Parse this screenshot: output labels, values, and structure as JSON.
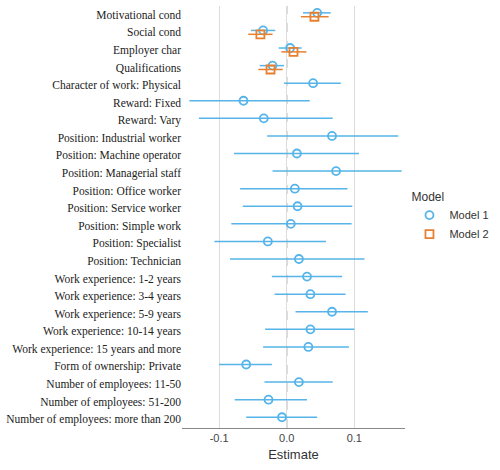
{
  "chart_data": {
    "type": "coefficient",
    "orientation": "horizontal",
    "xlabel": "Estimate",
    "legend_title": "Model",
    "legend": "right",
    "grid": true,
    "xlim": [
      -0.155,
      0.175
    ],
    "xticks": [
      {
        "value": -0.1,
        "label": "-0.1"
      },
      {
        "value": 0,
        "label": "0.0"
      },
      {
        "value": 0.1,
        "label": "0.1"
      }
    ],
    "reference_line": {
      "value": 0,
      "line_style": "dashed"
    },
    "categories": [
      "Motivational cond",
      "Social cond",
      "Employer char",
      "Qualifications",
      "Character of work: Physical",
      "Reward: Fixed",
      "Reward: Vary",
      "Position: Industrial worker",
      "Position: Machine operator",
      "Position: Managerial staff",
      "Position: Office worker",
      "Position: Service worker",
      "Position: Simple work",
      "Position: Specialist",
      "Position: Technician",
      "Work experience: 1-2 years",
      "Work experience: 3-4 years",
      "Work experience: 5-9 years",
      "Work experience: 10-14 years",
      "Work experience: 15 years and more",
      "Form of ownership: Private",
      "Number of employees: 11-50",
      "Number of employees: 51-200",
      "Number of employees: more than 200"
    ],
    "series": [
      {
        "name": "Model 1",
        "color": "#56b4e9",
        "marker": "circle-open",
        "values": [
          0.045,
          -0.035,
          0.005,
          -0.021,
          0.039,
          -0.064,
          -0.034,
          0.067,
          0.015,
          0.073,
          0.012,
          0.016,
          0.006,
          -0.028,
          0.018,
          0.03,
          0.035,
          0.067,
          0.035,
          0.032,
          -0.06,
          0.018,
          -0.027,
          -0.007
        ],
        "ci_low": [
          0.024,
          -0.053,
          -0.012,
          -0.04,
          -0.004,
          -0.144,
          -0.13,
          -0.029,
          -0.078,
          -0.021,
          -0.069,
          -0.065,
          -0.082,
          -0.107,
          -0.084,
          -0.022,
          -0.018,
          0.013,
          -0.032,
          -0.035,
          -0.1,
          -0.033,
          -0.077,
          -0.06
        ],
        "ci_high": [
          0.065,
          -0.017,
          0.022,
          -0.004,
          0.08,
          0.034,
          0.068,
          0.165,
          0.107,
          0.17,
          0.09,
          0.097,
          0.096,
          0.058,
          0.115,
          0.082,
          0.087,
          0.12,
          0.1,
          0.092,
          -0.022,
          0.068,
          0.03,
          0.045
        ]
      },
      {
        "name": "Model 2",
        "color": "#e8802f",
        "marker": "square-open",
        "values": [
          0.041,
          -0.039,
          0.01,
          -0.024,
          null,
          null,
          null,
          null,
          null,
          null,
          null,
          null,
          null,
          null,
          null,
          null,
          null,
          null,
          null,
          null,
          null,
          null,
          null,
          null
        ],
        "ci_low": [
          0.021,
          -0.057,
          -0.008,
          -0.042,
          null,
          null,
          null,
          null,
          null,
          null,
          null,
          null,
          null,
          null,
          null,
          null,
          null,
          null,
          null,
          null,
          null,
          null,
          null,
          null
        ],
        "ci_high": [
          0.062,
          -0.021,
          0.029,
          -0.006,
          null,
          null,
          null,
          null,
          null,
          null,
          null,
          null,
          null,
          null,
          null,
          null,
          null,
          null,
          null,
          null,
          null,
          null,
          null,
          null
        ]
      }
    ]
  }
}
